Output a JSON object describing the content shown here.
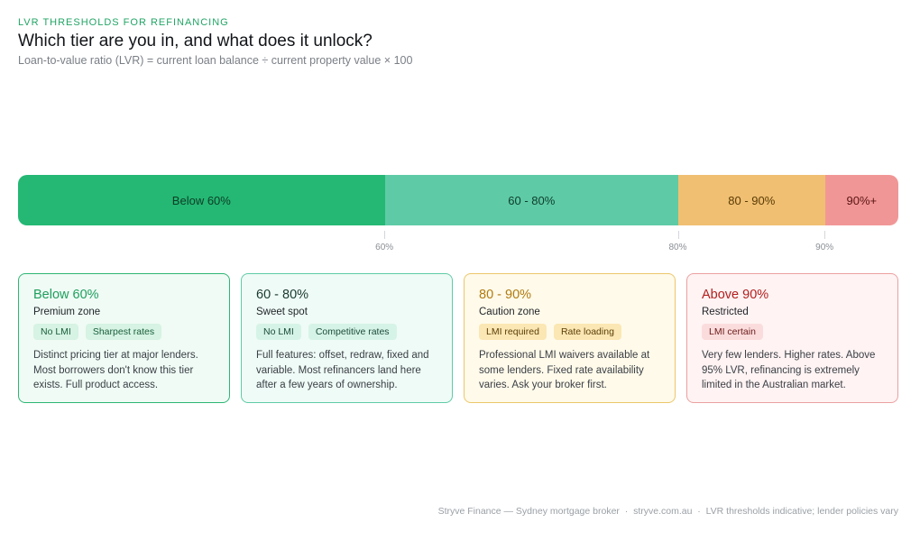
{
  "header": {
    "eyebrow": "LVR THRESHOLDS FOR REFINANCING",
    "title": "Which tier are you in, and what does it unlock?",
    "subtitle": "Loan-to-value ratio (LVR) = current loan balance ÷ current property value × 100"
  },
  "bar": {
    "segments": [
      {
        "label": "Below 60%",
        "from": 35,
        "to": 60,
        "color": "#24b874",
        "text_color": "#0e3d25"
      },
      {
        "label": "60 - 80%",
        "from": 60,
        "to": 80,
        "color": "#5ecba6",
        "text_color": "#0e3d2c"
      },
      {
        "label": "80 - 90%",
        "from": 80,
        "to": 90,
        "color": "#f0bf72",
        "text_color": "#5a3b05"
      },
      {
        "label": "90%+",
        "from": 90,
        "to": 95,
        "color": "#f19696",
        "text_color": "#5a1414"
      }
    ],
    "ticks": [
      "60%",
      "80%",
      "90%"
    ]
  },
  "cards": [
    {
      "range": "Below 60%",
      "name": "Premium zone",
      "chips": [
        "No LMI",
        "Sharpest rates"
      ],
      "desc": "Distinct pricing tier at major lenders. Most borrowers don't know this tier exists. Full product access.",
      "border": "#2fb674",
      "bg": "#f0fbf5",
      "accent": "#1e9e5d",
      "chip_bg": "#d6f3e3",
      "chip_text": "#1a5e3b"
    },
    {
      "range": "60 - 80%",
      "name": "Sweet spot",
      "chips": [
        "No LMI",
        "Competitive rates"
      ],
      "desc": "Full features: offset, redraw, fixed and variable. Most refinancers land here after a few years of ownership.",
      "border": "#5ecba6",
      "bg": "#effbf6",
      "accent": "#1a3a30",
      "chip_bg": "#d6f3e7",
      "chip_text": "#1a4d3a"
    },
    {
      "range": "80 - 90%",
      "name": "Caution zone",
      "chips": [
        "LMI required",
        "Rate loading"
      ],
      "desc": "Professional LMI waivers available at some lenders. Fixed rate availability varies. Ask your broker first.",
      "border": "#ecc76a",
      "bg": "#fffaea",
      "accent": "#b07b10",
      "chip_bg": "#fbe7b3",
      "chip_text": "#5b3e06"
    },
    {
      "range": "Above 90%",
      "name": "Restricted",
      "chips": [
        "LMI certain"
      ],
      "desc": "Very few lenders. Higher rates. Above 95% LVR, refinancing is extremely limited in the Australian market.",
      "border": "#eba0a0",
      "bg": "#fff3f3",
      "accent": "#b21e1e",
      "chip_bg": "#fbdcdc",
      "chip_text": "#6b1a1a"
    }
  ],
  "footer": "Stryve Finance — Sydney mortgage broker  ·  stryve.com.au  ·  LVR thresholds indicative; lender policies vary"
}
